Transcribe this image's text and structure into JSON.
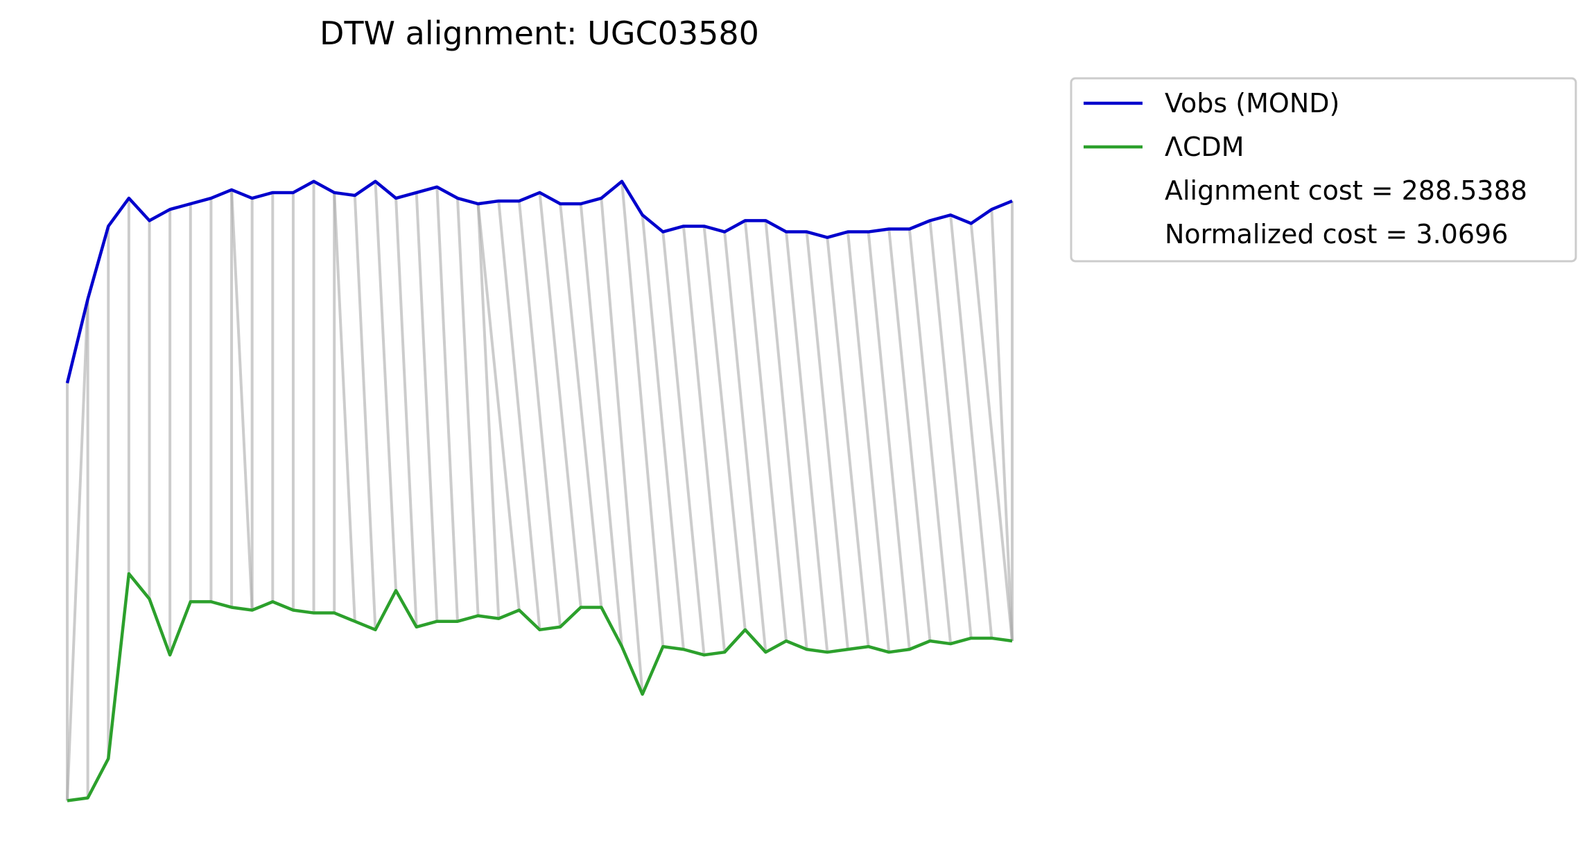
{
  "chart_data": {
    "type": "line",
    "title": "DTW alignment: UGC03580",
    "xlabel": "",
    "ylabel": "",
    "axes_visible": false,
    "grid": false,
    "legend_position": "upper-right-outside",
    "colors": {
      "mond": "#0000cc",
      "lcdm": "#2ca02c",
      "alignment": "#aaaaaa"
    },
    "ylim": [
      0,
      13.6
    ],
    "series": [
      {
        "name": "Vobs (MOND)",
        "values": [
          8.0,
          9.5,
          10.8,
          11.3,
          10.9,
          11.1,
          11.2,
          11.3,
          11.45,
          11.3,
          11.4,
          11.4,
          11.6,
          11.4,
          11.35,
          11.6,
          11.3,
          11.4,
          11.5,
          11.3,
          11.2,
          11.25,
          11.25,
          11.4,
          11.2,
          11.2,
          11.3,
          11.6,
          11.0,
          10.7,
          10.8,
          10.8,
          10.7,
          10.9,
          10.9,
          10.7,
          10.7,
          10.6,
          10.7,
          10.7,
          10.75,
          10.75,
          10.9,
          11.0,
          10.85,
          11.1,
          11.25
        ]
      },
      {
        "name": "ΛCDM",
        "values": [
          0.55,
          0.6,
          1.3,
          4.6,
          4.15,
          3.15,
          4.1,
          4.1,
          4.0,
          3.95,
          4.1,
          3.95,
          3.9,
          3.9,
          3.75,
          3.6,
          4.3,
          3.65,
          3.75,
          3.75,
          3.85,
          3.8,
          3.95,
          3.6,
          3.65,
          4.0,
          4.0,
          3.3,
          2.45,
          3.3,
          3.25,
          3.15,
          3.2,
          3.6,
          3.2,
          3.4,
          3.25,
          3.2,
          3.25,
          3.3,
          3.2,
          3.25,
          3.4,
          3.35,
          3.45,
          3.45,
          3.4
        ]
      }
    ],
    "alignment_path": [
      [
        0,
        0
      ],
      [
        1,
        0
      ],
      [
        1,
        1
      ],
      [
        2,
        2
      ],
      [
        3,
        3
      ],
      [
        4,
        4
      ],
      [
        5,
        5
      ],
      [
        6,
        6
      ],
      [
        7,
        7
      ],
      [
        8,
        8
      ],
      [
        8,
        9
      ],
      [
        9,
        9
      ],
      [
        10,
        10
      ],
      [
        11,
        11
      ],
      [
        12,
        12
      ],
      [
        13,
        13
      ],
      [
        13,
        14
      ],
      [
        14,
        15
      ],
      [
        15,
        16
      ],
      [
        16,
        17
      ],
      [
        17,
        18
      ],
      [
        18,
        19
      ],
      [
        19,
        20
      ],
      [
        20,
        21
      ],
      [
        20,
        22
      ],
      [
        21,
        23
      ],
      [
        22,
        24
      ],
      [
        23,
        25
      ],
      [
        24,
        26
      ],
      [
        25,
        27
      ],
      [
        26,
        28
      ],
      [
        27,
        29
      ],
      [
        28,
        30
      ],
      [
        29,
        31
      ],
      [
        30,
        32
      ],
      [
        31,
        33
      ],
      [
        32,
        34
      ],
      [
        33,
        35
      ],
      [
        34,
        36
      ],
      [
        35,
        37
      ],
      [
        36,
        38
      ],
      [
        37,
        39
      ],
      [
        38,
        40
      ],
      [
        39,
        41
      ],
      [
        40,
        42
      ],
      [
        41,
        43
      ],
      [
        42,
        44
      ],
      [
        43,
        45
      ],
      [
        44,
        46
      ],
      [
        45,
        46
      ],
      [
        46,
        46
      ]
    ],
    "legend": {
      "entries": [
        "Vobs (MOND)",
        "ΛCDM"
      ],
      "notes": [
        "Alignment cost = 288.5388",
        "Normalized cost = 3.0696"
      ]
    }
  }
}
